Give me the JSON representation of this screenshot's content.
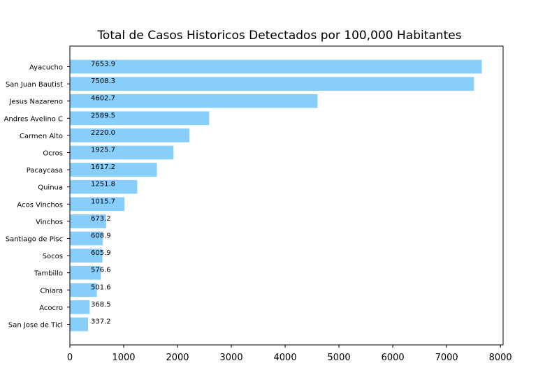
{
  "chart_data": {
    "type": "bar",
    "orientation": "horizontal",
    "title": "Total de Casos Historicos Detectados por 100,000 Habitantes",
    "xlabel": "",
    "ylabel": "",
    "categories": [
      "Ayacucho",
      "San Juan Bautist",
      "Jesus Nazareno",
      "Andres Avelino C",
      "Carmen Alto",
      "Ocros",
      "Pacaycasa",
      "Quinua",
      "Acos Vinchos",
      "Vinchos",
      "Santiago de Pisc",
      "Socos",
      "Tambillo",
      "Chiara",
      "Acocro",
      "San Jose de Ticl"
    ],
    "values": [
      7653.9,
      7508.3,
      4602.7,
      2589.5,
      2220.0,
      1925.7,
      1617.2,
      1251.8,
      1015.7,
      673.2,
      608.9,
      605.9,
      576.6,
      501.6,
      368.5,
      337.2
    ],
    "value_labels": [
      "7653.9",
      "7508.3",
      "4602.7",
      "2589.5",
      "2220.0",
      "1925.7",
      "1617.2",
      "1251.8",
      "1015.7",
      "673.2",
      "608.9",
      "605.9",
      "576.6",
      "501.6",
      "368.5",
      "337.2"
    ],
    "xlim": [
      0,
      8050
    ],
    "xticks": [
      0,
      1000,
      2000,
      3000,
      4000,
      5000,
      6000,
      7000,
      8000
    ],
    "xtick_labels": [
      "0",
      "1000",
      "2000",
      "3000",
      "4000",
      "5000",
      "6000",
      "7000",
      "8000"
    ],
    "grid": false,
    "bar_color": "#87CEFA"
  }
}
